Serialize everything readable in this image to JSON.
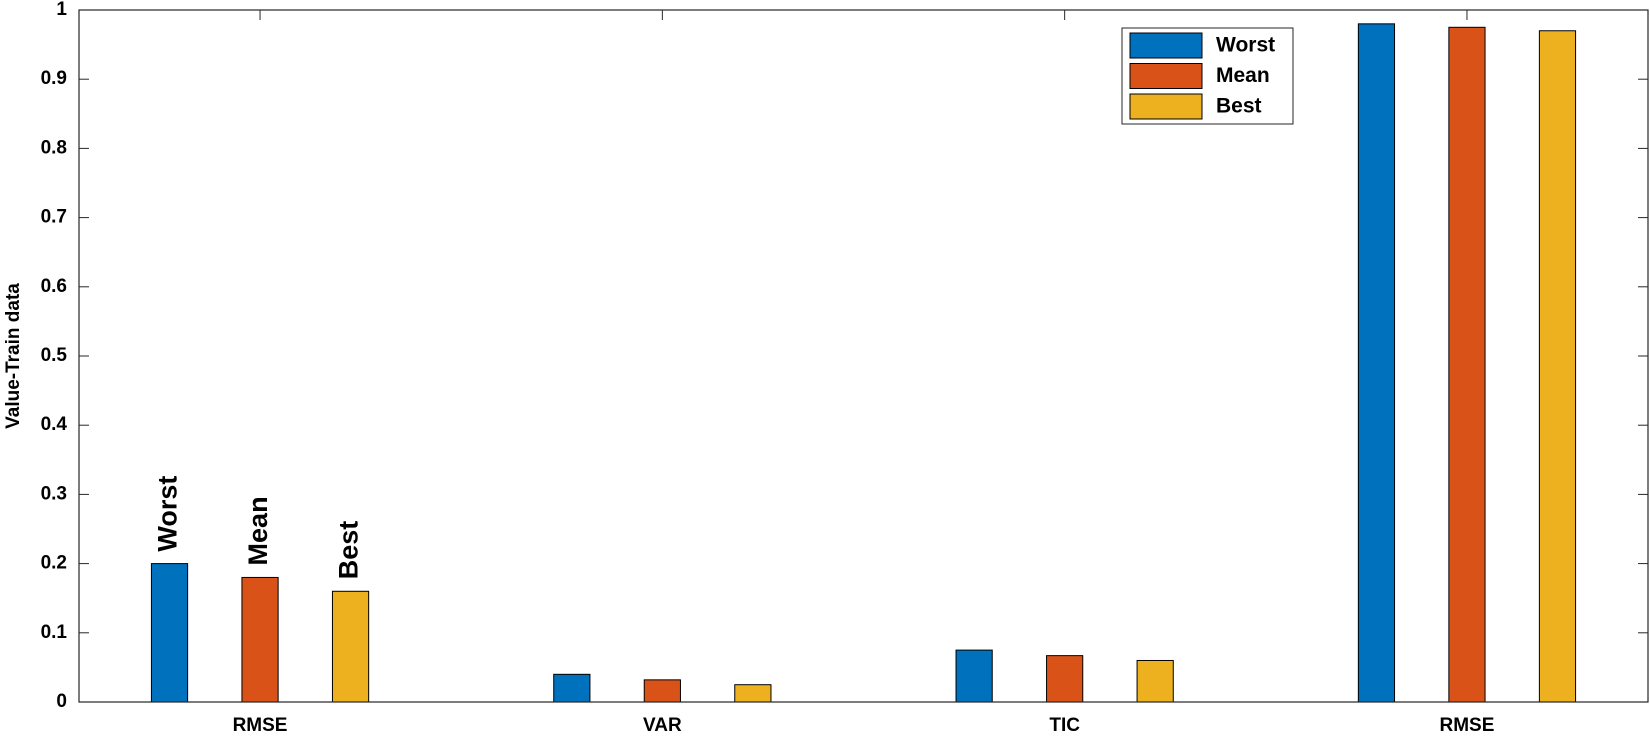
{
  "chart_data": {
    "type": "bar",
    "ylabel": "Value-Train data",
    "categories": [
      "RMSE",
      "VAR",
      "TIC",
      "RMSE"
    ],
    "series": [
      {
        "name": "Worst",
        "color": "#0072BD",
        "values": [
          0.2,
          0.04,
          0.075,
          0.98
        ]
      },
      {
        "name": "Mean",
        "color": "#D95319",
        "values": [
          0.18,
          0.032,
          0.067,
          0.975
        ]
      },
      {
        "name": "Best",
        "color": "#EDB120",
        "values": [
          0.16,
          0.025,
          0.06,
          0.97
        ]
      }
    ],
    "ylim": [
      0,
      1
    ],
    "yticks": [
      0,
      0.1,
      0.2,
      0.3,
      0.4,
      0.5,
      0.6,
      0.7,
      0.8,
      0.9,
      1
    ],
    "legend": "top-right"
  }
}
